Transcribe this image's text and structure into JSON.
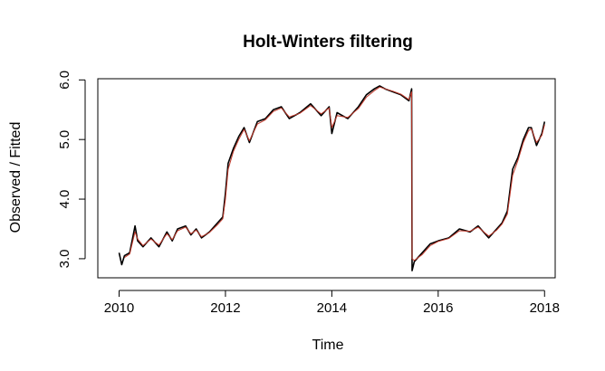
{
  "chart_data": {
    "type": "line",
    "title": "Holt-Winters filtering",
    "xlabel": "Time",
    "ylabel": "Observed / Fitted",
    "xlim": [
      2009.6,
      2018.2
    ],
    "ylim": [
      2.68,
      6.02
    ],
    "x_ticks": [
      2010,
      2012,
      2014,
      2016,
      2018
    ],
    "x_tick_labels": [
      "2010",
      "2012",
      "2014",
      "2016",
      "2018"
    ],
    "y_ticks": [
      3.0,
      4.0,
      5.0,
      6.0
    ],
    "y_tick_labels": [
      "3.0",
      "4.0",
      "5.0",
      "6.0"
    ],
    "grid": false,
    "legend": "none",
    "series": [
      {
        "role": "observed",
        "color": "#000000",
        "x": [
          2010.0,
          2010.05,
          2010.1,
          2010.2,
          2010.3,
          2010.35,
          2010.45,
          2010.6,
          2010.75,
          2010.9,
          2011.0,
          2011.1,
          2011.25,
          2011.35,
          2011.45,
          2011.55,
          2011.7,
          2011.85,
          2011.95,
          2012.0,
          2012.05,
          2012.15,
          2012.25,
          2012.35,
          2012.45,
          2012.6,
          2012.75,
          2012.9,
          2013.05,
          2013.2,
          2013.4,
          2013.6,
          2013.8,
          2013.95,
          2014.0,
          2014.1,
          2014.3,
          2014.5,
          2014.65,
          2014.8,
          2014.9,
          2015.0,
          2015.15,
          2015.3,
          2015.45,
          2015.5,
          2015.51,
          2015.55,
          2015.7,
          2015.85,
          2016.0,
          2016.2,
          2016.4,
          2016.6,
          2016.75,
          2016.95,
          2017.1,
          2017.2,
          2017.3,
          2017.4,
          2017.5,
          2017.6,
          2017.7,
          2017.75,
          2017.85,
          2017.95,
          2018.0
        ],
        "y": [
          3.1,
          2.9,
          3.05,
          3.1,
          3.55,
          3.3,
          3.2,
          3.35,
          3.2,
          3.45,
          3.3,
          3.5,
          3.55,
          3.4,
          3.5,
          3.35,
          3.45,
          3.6,
          3.7,
          4.1,
          4.6,
          4.85,
          5.05,
          5.2,
          4.95,
          5.3,
          5.35,
          5.5,
          5.55,
          5.35,
          5.45,
          5.6,
          5.4,
          5.55,
          5.1,
          5.45,
          5.35,
          5.55,
          5.75,
          5.85,
          5.9,
          5.85,
          5.8,
          5.75,
          5.65,
          5.85,
          2.8,
          2.95,
          3.1,
          3.25,
          3.3,
          3.35,
          3.5,
          3.45,
          3.55,
          3.35,
          3.5,
          3.6,
          3.8,
          4.5,
          4.7,
          5.0,
          5.2,
          5.2,
          4.9,
          5.1,
          5.3
        ]
      },
      {
        "role": "fitted",
        "color": "#c0392b",
        "x": [
          2010.1,
          2010.2,
          2010.3,
          2010.35,
          2010.45,
          2010.6,
          2010.75,
          2010.9,
          2011.0,
          2011.1,
          2011.25,
          2011.35,
          2011.45,
          2011.55,
          2011.7,
          2011.85,
          2011.95,
          2012.0,
          2012.05,
          2012.15,
          2012.25,
          2012.35,
          2012.45,
          2012.6,
          2012.75,
          2012.9,
          2013.05,
          2013.2,
          2013.4,
          2013.6,
          2013.8,
          2013.95,
          2014.0,
          2014.1,
          2014.3,
          2014.5,
          2014.65,
          2014.8,
          2014.9,
          2015.0,
          2015.15,
          2015.3,
          2015.45,
          2015.5,
          2015.51,
          2015.55,
          2015.7,
          2015.85,
          2016.0,
          2016.2,
          2016.4,
          2016.6,
          2016.75,
          2016.95,
          2017.1,
          2017.2,
          2017.3,
          2017.4,
          2017.5,
          2017.6,
          2017.7,
          2017.75,
          2017.85,
          2017.95,
          2018.0
        ],
        "y": [
          3.02,
          3.08,
          3.45,
          3.33,
          3.22,
          3.33,
          3.23,
          3.42,
          3.32,
          3.47,
          3.53,
          3.42,
          3.48,
          3.37,
          3.44,
          3.57,
          3.67,
          4.0,
          4.5,
          4.8,
          5.0,
          5.17,
          4.98,
          5.26,
          5.33,
          5.47,
          5.53,
          5.38,
          5.44,
          5.57,
          5.43,
          5.53,
          5.2,
          5.4,
          5.37,
          5.52,
          5.71,
          5.82,
          5.88,
          5.85,
          5.81,
          5.76,
          5.67,
          5.8,
          3.0,
          2.97,
          3.07,
          3.22,
          3.29,
          3.34,
          3.47,
          3.46,
          3.53,
          3.38,
          3.48,
          3.58,
          3.75,
          4.4,
          4.65,
          4.95,
          5.15,
          5.18,
          4.95,
          5.07,
          5.25
        ]
      }
    ]
  }
}
